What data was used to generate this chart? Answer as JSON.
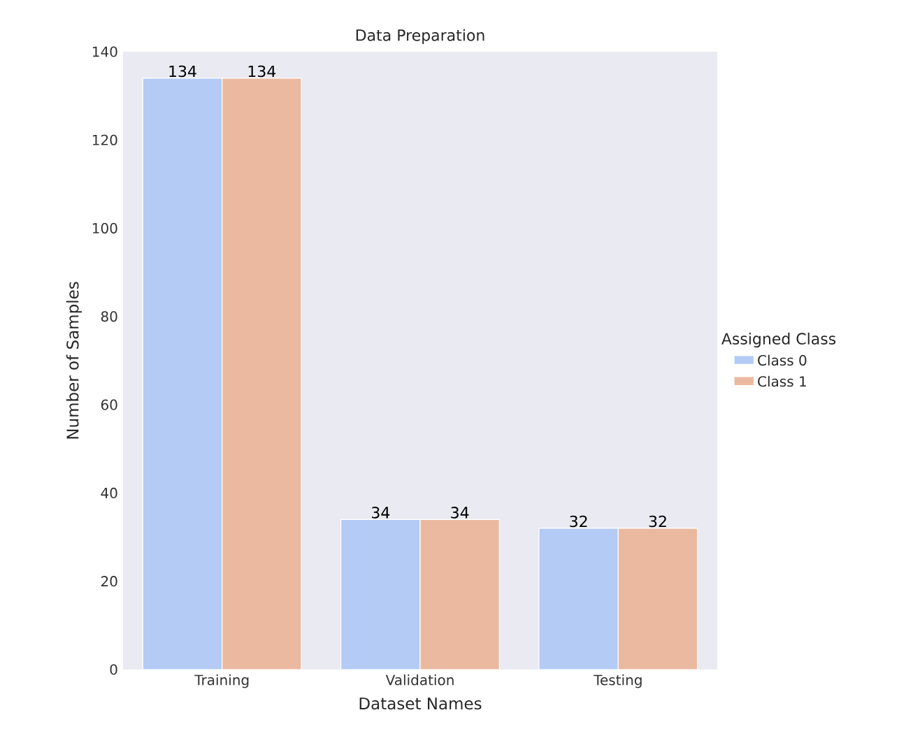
{
  "chart_data": {
    "type": "bar",
    "title": "Data Preparation",
    "xlabel": "Dataset Names",
    "ylabel": "Number of Samples",
    "legend_title": "Assigned Class",
    "categories": [
      "Training",
      "Validation",
      "Testing"
    ],
    "series": [
      {
        "name": "Class 0",
        "color": "#b3cbf5",
        "values": [
          134,
          34,
          32
        ]
      },
      {
        "name": "Class 1",
        "color": "#ebb9a0",
        "values": [
          134,
          34,
          32
        ]
      }
    ],
    "ylim": [
      0,
      140
    ],
    "yticks": [
      0,
      20,
      40,
      60,
      80,
      100,
      120,
      140
    ],
    "data_labels": true,
    "legend": "right",
    "grid": false
  }
}
